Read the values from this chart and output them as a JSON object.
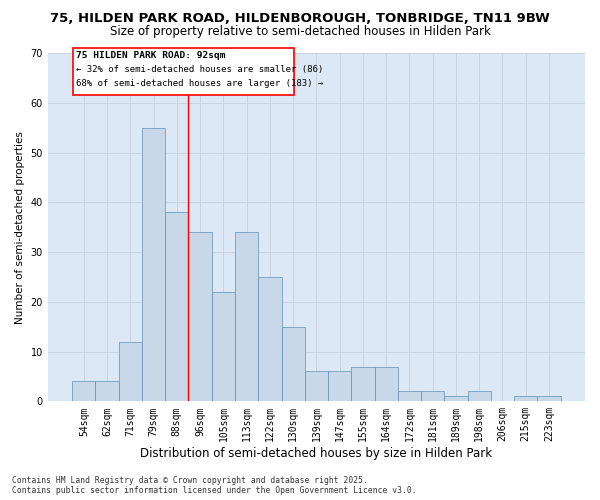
{
  "title1": "75, HILDEN PARK ROAD, HILDENBOROUGH, TONBRIDGE, TN11 9BW",
  "title2": "Size of property relative to semi-detached houses in Hilden Park",
  "xlabel": "Distribution of semi-detached houses by size in Hilden Park",
  "ylabel": "Number of semi-detached properties",
  "categories": [
    "54sqm",
    "62sqm",
    "71sqm",
    "79sqm",
    "88sqm",
    "96sqm",
    "105sqm",
    "113sqm",
    "122sqm",
    "130sqm",
    "139sqm",
    "147sqm",
    "155sqm",
    "164sqm",
    "172sqm",
    "181sqm",
    "189sqm",
    "198sqm",
    "206sqm",
    "215sqm",
    "223sqm"
  ],
  "values": [
    4,
    4,
    12,
    55,
    38,
    34,
    22,
    34,
    25,
    15,
    6,
    6,
    7,
    7,
    2,
    2,
    1,
    2,
    0,
    1,
    1
  ],
  "bar_color": "#c8d8e8",
  "bar_edge_color": "#6090b8",
  "bar_edge_width": 0.5,
  "ylim": [
    0,
    70
  ],
  "yticks": [
    0,
    10,
    20,
    30,
    40,
    50,
    60,
    70
  ],
  "red_line_x": 4.5,
  "annotation_title": "75 HILDEN PARK ROAD: 92sqm",
  "annotation_line1": "← 32% of semi-detached houses are smaller (86)",
  "annotation_line2": "68% of semi-detached houses are larger (183) →",
  "grid_color": "#c8d0dc",
  "bg_color": "#dce8f5",
  "footer1": "Contains HM Land Registry data © Crown copyright and database right 2025.",
  "footer2": "Contains public sector information licensed under the Open Government Licence v3.0.",
  "title1_fontsize": 9.5,
  "title2_fontsize": 8.5,
  "xlabel_fontsize": 8.5,
  "ylabel_fontsize": 7.5,
  "tick_fontsize": 7,
  "ann_fontsize": 6.8,
  "footer_fontsize": 5.8
}
